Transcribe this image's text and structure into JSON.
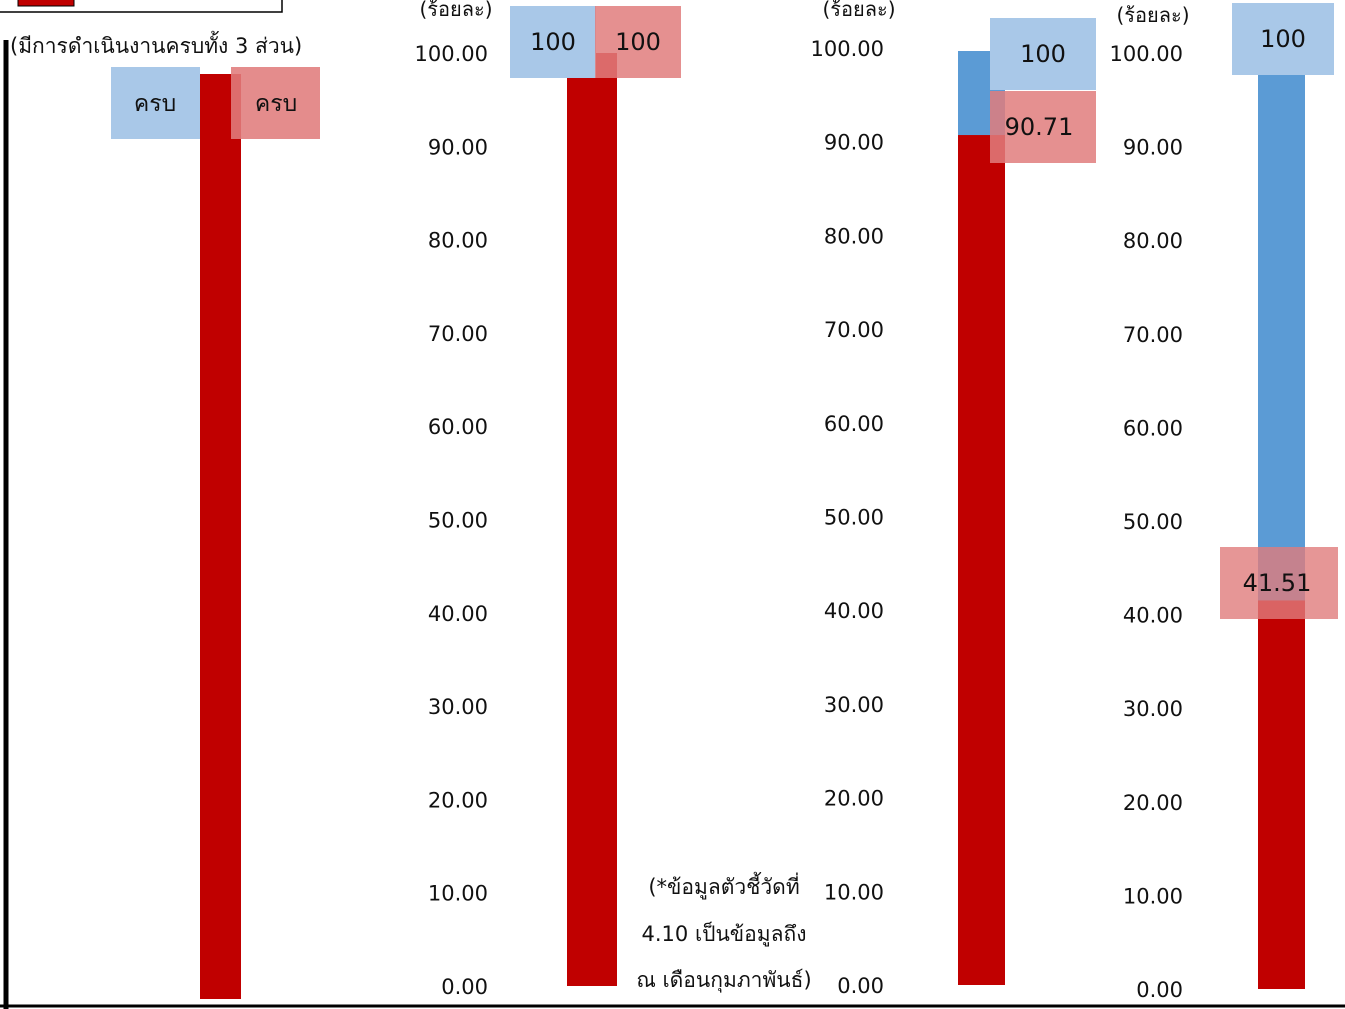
{
  "legend_fragment_text": "(มีการดำเนินงานครบทั้ง 3 ส่วน)",
  "footnote_lines": [
    "(*ข้อมูลตัวชี้วัดที่",
    "4.10 เป็นข้อมูลถึง",
    "ณ เดือนกุมภาพันธ์)"
  ],
  "colors": {
    "target": "#5B9BD5",
    "target_label_bg": "#A9C8E8",
    "actual": "#C00000",
    "actual_label_bg": "#E07C7C",
    "axis": "#000000"
  },
  "chart_data": [
    {
      "type": "bar",
      "subtitle": "",
      "ylabel": "",
      "ylim": [
        0,
        100
      ],
      "tick_labels": [],
      "series": [
        {
          "name": "",
          "values": [
            100
          ],
          "value_label": "ครบ"
        },
        {
          "name": "",
          "values": [
            100
          ],
          "value_label": "ครบ"
        }
      ]
    },
    {
      "type": "bar",
      "ylabel": "(ร้อยละ)",
      "ylim": [
        0,
        100
      ],
      "tick_labels": [
        "0.00",
        "10.00",
        "20.00",
        "30.00",
        "40.00",
        "50.00",
        "60.00",
        "70.00",
        "80.00",
        "90.00",
        "100.00"
      ],
      "series": [
        {
          "name": "",
          "values": [
            100
          ],
          "value_label": "100"
        },
        {
          "name": "",
          "values": [
            100
          ],
          "value_label": "100"
        }
      ]
    },
    {
      "type": "bar",
      "ylabel": "(ร้อยละ)",
      "ylim": [
        0,
        100
      ],
      "tick_labels": [
        "0.00",
        "10.00",
        "20.00",
        "30.00",
        "40.00",
        "50.00",
        "60.00",
        "70.00",
        "80.00",
        "90.00",
        "100.00"
      ],
      "series": [
        {
          "name": "",
          "values": [
            100
          ],
          "value_label": "100"
        },
        {
          "name": "",
          "values": [
            90.71
          ],
          "value_label": "90.71"
        }
      ]
    },
    {
      "type": "bar",
      "ylabel": "(ร้อยละ)",
      "ylim": [
        0,
        100
      ],
      "tick_labels": [
        "0.00",
        "10.00",
        "20.00",
        "30.00",
        "40.00",
        "50.00",
        "60.00",
        "70.00",
        "80.00",
        "90.00",
        "100.00"
      ],
      "series": [
        {
          "name": "",
          "values": [
            100
          ],
          "value_label": "100"
        },
        {
          "name": "",
          "values": [
            41.51
          ],
          "value_label": "41.51"
        }
      ]
    }
  ]
}
